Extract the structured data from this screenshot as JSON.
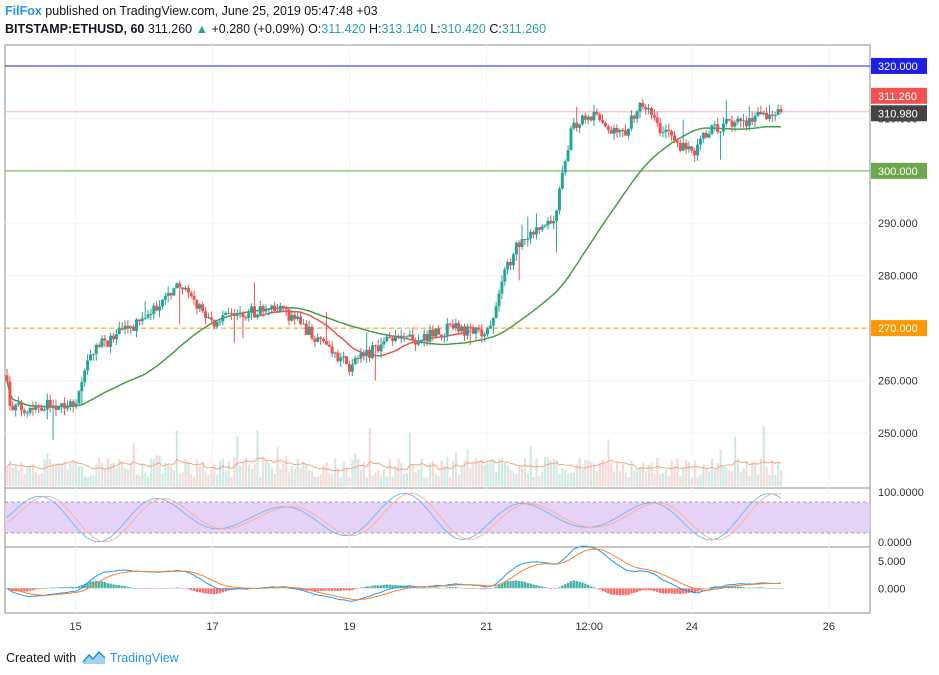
{
  "header": {
    "author": "FilFox",
    "published_text": "published on TradingView.com, June 25, 2019 05:47:48 +03",
    "symbol": "BITSTAMP:ETHUSD, 60",
    "last": "311.260",
    "change_arrow": "▲",
    "change": "+0.280 (+0.09%)",
    "o_label": "O:",
    "o_value": "311.420",
    "h_label": "H:",
    "h_value": "313.140",
    "l_label": "L:",
    "l_value": "310.420",
    "c_label": "C:",
    "c_value": "311.260"
  },
  "footer": {
    "created_with": "Created with",
    "brand": "TradingView",
    "logo_icon": "tradingview-logo-icon"
  },
  "colors": {
    "up": "#26a69a",
    "down": "#ef5350",
    "ma_fast": "#ef5350",
    "ma_slow": "#43a047",
    "blue_level": "#1e1ee6",
    "green_level": "#6ca84a",
    "orange_level": "#ff9800",
    "rsi_band": "#e1c7f5",
    "macd_line": "#2196f3",
    "signal_line": "#ff7f2a"
  },
  "chart_data": {
    "type": "candlestick",
    "interval": "60 minutes",
    "price_axis": {
      "ylim": [
        239.5,
        324
      ],
      "ticks": [
        "320.000",
        "310.000",
        "300.000",
        "290.000",
        "280.000",
        "270.000",
        "260.000",
        "250.000"
      ]
    },
    "time_axis": {
      "labels": [
        "15",
        "17",
        "19",
        "21",
        "12:00",
        "24",
        "26"
      ]
    },
    "horizontal_levels": [
      {
        "value": 320.0,
        "label": "320.000",
        "style": "solid",
        "color": "#1e1ee6"
      },
      {
        "value": 300.0,
        "label": "300.000",
        "style": "solid",
        "color": "#6ca84a"
      },
      {
        "value": 270.0,
        "label": "270.000",
        "style": "dashed",
        "color": "#ff9800"
      }
    ],
    "price_tags": [
      {
        "value": 311.26,
        "label": "311.260",
        "color": "#ef5350"
      },
      {
        "value": 310.98,
        "label": "310.980",
        "color": "#444444"
      }
    ],
    "price_path_waypoints": [
      {
        "x": "start",
        "y": 261.0
      },
      {
        "x": "14",
        "y": 254.5
      },
      {
        "x": "15",
        "y": 256.0
      },
      {
        "x": "15 06:00",
        "y": 266.0
      },
      {
        "x": "16",
        "y": 271.5
      },
      {
        "x": "16 12:00",
        "y": 278.5
      },
      {
        "x": "17",
        "y": 271.0
      },
      {
        "x": "17 12:00",
        "y": 273.0
      },
      {
        "x": "18",
        "y": 273.5
      },
      {
        "x": "18 12:00",
        "y": 268.5
      },
      {
        "x": "19",
        "y": 262.5
      },
      {
        "x": "19 12:00",
        "y": 267.5
      },
      {
        "x": "20",
        "y": 268.0
      },
      {
        "x": "20 12:00",
        "y": 270.0
      },
      {
        "x": "21",
        "y": 268.5
      },
      {
        "x": "21 06:00",
        "y": 280.0
      },
      {
        "x": "21 12:00",
        "y": 287.0
      },
      {
        "x": "22",
        "y": 291.0
      },
      {
        "x": "22 06:00",
        "y": 308.5
      },
      {
        "x": "12:00",
        "y": 311.0
      },
      {
        "x": "23",
        "y": 306.5
      },
      {
        "x": "23 06:00",
        "y": 313.5
      },
      {
        "x": "23 12:00",
        "y": 308.5
      },
      {
        "x": "24",
        "y": 303.0
      },
      {
        "x": "24 06:00",
        "y": 308.0
      },
      {
        "x": "end",
        "y": 311.26
      }
    ],
    "ma_fast_last": 310.5,
    "ma_slow_last": 306.5,
    "volume_ma": true,
    "rsi": {
      "axis_labels": [
        "100.0000",
        "0.0000"
      ],
      "band_upper": 80,
      "band_lower": 20
    },
    "macd": {
      "axis_labels": [
        "5.000",
        "0.000"
      ],
      "ylim": [
        -4.5,
        7.5
      ]
    }
  }
}
